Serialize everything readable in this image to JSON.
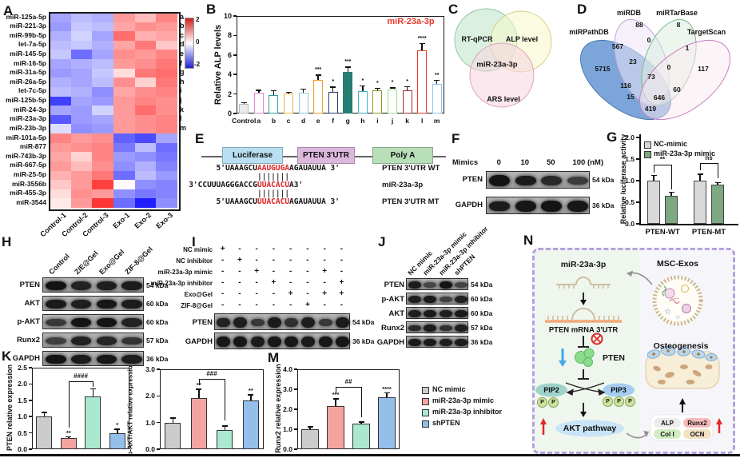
{
  "panels": {
    "A": "A",
    "B": "B",
    "C": "C",
    "D": "D",
    "E": "E",
    "F": "F",
    "G": "G",
    "H": "H",
    "I": "I",
    "J": "J",
    "K": "K",
    "L": "L",
    "M": "M",
    "N": "N"
  },
  "heatmap": {
    "rows": [
      "miR-125a-5p",
      "miR-221-3p",
      "miR-99b-5p",
      "let-7a-5p",
      "miR-145-5p",
      "miR-16-5p",
      "miR-31a-5p",
      "miR-26a-5p",
      "let-7c-5p",
      "miR-125b-5p",
      "miR-24-3p",
      "miR-23a-3p",
      "miR-23b-3p",
      "miR-101a-5p",
      "miR-877",
      "miR-743b-3p",
      "miR-667-5p",
      "miR-25-5p",
      "miR-3556b",
      "miR-455-3p",
      "miR-3544"
    ],
    "row_letters": [
      "a",
      "b",
      "c",
      "d",
      "e",
      "f",
      "g",
      "h",
      "i",
      "j",
      "k",
      "l",
      "m"
    ],
    "columns": [
      "Control-1",
      "Control-2",
      "Control-3",
      "Exo-1",
      "Exo-2",
      "Exo-3"
    ],
    "values": [
      [
        -0.8,
        -0.6,
        -0.7,
        0.9,
        0.6,
        1.1
      ],
      [
        -0.9,
        -0.5,
        -0.6,
        0.8,
        1.0,
        0.9
      ],
      [
        -0.7,
        -0.4,
        -0.8,
        1.3,
        0.7,
        0.8
      ],
      [
        -0.6,
        -0.5,
        -0.7,
        0.8,
        1.2,
        0.5
      ],
      [
        -0.5,
        -1.3,
        -0.8,
        1.0,
        0.9,
        1.1
      ],
      [
        -0.8,
        -0.7,
        -0.6,
        0.9,
        1.0,
        1.2
      ],
      [
        -0.9,
        -0.8,
        -0.5,
        0.3,
        1.2,
        1.3
      ],
      [
        -0.7,
        -0.8,
        -0.6,
        1.0,
        0.4,
        1.2
      ],
      [
        -0.6,
        -0.7,
        -1.0,
        0.8,
        1.0,
        1.1
      ],
      [
        -1.7,
        -0.8,
        -0.9,
        0.9,
        1.1,
        1.0
      ],
      [
        -0.8,
        -0.9,
        -0.4,
        0.9,
        1.3,
        1.0
      ],
      [
        -1.5,
        -0.9,
        -0.8,
        0.9,
        1.0,
        1.1
      ],
      [
        -0.3,
        -1.0,
        -0.9,
        0.9,
        1.0,
        1.1
      ],
      [
        1.1,
        0.9,
        1.0,
        -1.4,
        -1.6,
        -0.8
      ],
      [
        0.9,
        1.0,
        1.1,
        -1.2,
        -0.6,
        -1.3
      ],
      [
        0.8,
        0.4,
        1.1,
        -0.9,
        -1.0,
        -1.2
      ],
      [
        0.9,
        0.6,
        1.0,
        -1.0,
        -0.7,
        -1.1
      ],
      [
        0.7,
        0.9,
        1.2,
        -1.3,
        -0.6,
        -0.9
      ],
      [
        0.5,
        0.9,
        1.7,
        0.05,
        -1.0,
        -1.1
      ],
      [
        0.3,
        1.0,
        0.9,
        -1.0,
        -1.2,
        -1.1
      ],
      [
        0.2,
        0.9,
        1.8,
        -1.3,
        -2.0,
        -1.0
      ]
    ],
    "colorbar": {
      "max": "2",
      "mid": "0",
      "min": "-2"
    }
  },
  "chart_data": [
    {
      "id": "B",
      "type": "bar",
      "ylabel": "Relative ALP levels",
      "ylim": [
        0,
        10
      ],
      "yticks": [
        "0",
        "2",
        "4",
        "6",
        "8",
        "10"
      ],
      "categories": [
        "Control",
        "a",
        "b",
        "c",
        "d",
        "e",
        "f",
        "g",
        "h",
        "i",
        "j",
        "k",
        "l",
        "m"
      ],
      "values": [
        1.0,
        2.1,
        1.9,
        2.05,
        2.1,
        3.45,
        2.2,
        4.3,
        2.3,
        2.4,
        2.5,
        2.35,
        6.5,
        3.0
      ],
      "errors": [
        0.15,
        0.35,
        0.5,
        0.2,
        0.45,
        0.55,
        0.55,
        0.5,
        0.6,
        0.25,
        0.2,
        0.45,
        0.75,
        0.45
      ],
      "sig": [
        "",
        "",
        "",
        "",
        "",
        "***",
        "*",
        "***",
        "*",
        "*",
        "*",
        "*",
        "****",
        "**"
      ],
      "bar_colors": [
        "#b8b8b8",
        "#dd86dd",
        "#2d9d9d",
        "#f2b23c",
        "#8ec6e6",
        "#f59d2c",
        "#24406e",
        "#267d72",
        "#35b4bf",
        "#8f9623",
        "#9fdf8f",
        "#9e2b25",
        "#e8372b",
        "#97c2ef"
      ],
      "bar_fills": [
        "#ececec",
        "#ffffff",
        "#ffffff",
        "#ffffff",
        "#ffffff",
        "#ffffff",
        "#ffffff",
        "#267d72",
        "#ffffff",
        "#ffffff",
        "#ffffff",
        "#ffffff",
        "#ffffff",
        "#ffffff"
      ],
      "annotation": {
        "text": "miR-23a-3p",
        "color": "#e8372b"
      }
    },
    {
      "id": "G",
      "type": "grouped-bar",
      "ylabel": "Relative luciferase activity",
      "ylim": [
        0,
        2
      ],
      "yticks": [
        "0.0",
        "0.5",
        "1.0",
        "1.5",
        "2.0"
      ],
      "groups": [
        "PTEN-WT",
        "PTEN-MT"
      ],
      "series": [
        {
          "name": "NC-mimic",
          "color": "#d9d9d9",
          "values": [
            1.0,
            1.0
          ],
          "errors": [
            0.13,
            0.16
          ]
        },
        {
          "name": "miR-23a-3p mimic",
          "color": "#7ca882",
          "values": [
            0.65,
            0.9
          ],
          "errors": [
            0.1,
            0.07
          ]
        }
      ],
      "sig": [
        "**",
        "ns"
      ]
    },
    {
      "id": "K",
      "type": "bar",
      "ylabel": "PTEN relative expression",
      "ylim": [
        0,
        2.5
      ],
      "yticks": [
        "0.0",
        "0.5",
        "1.0",
        "1.5",
        "2.0",
        "2.5"
      ],
      "values": [
        1.0,
        0.35,
        1.62,
        0.5
      ],
      "errors": [
        0.15,
        0.05,
        0.25,
        0.13
      ],
      "sig": [
        "",
        "**",
        "",
        "*"
      ],
      "bracket": {
        "from": 1,
        "to": 2,
        "label": "####"
      }
    },
    {
      "id": "L",
      "type": "bar",
      "ylabel": "p-AKT/AKT relative expression",
      "ylim": [
        0,
        3
      ],
      "yticks": [
        "0.0",
        "1.0",
        "2.0",
        "3.0"
      ],
      "values": [
        1.0,
        1.93,
        0.72,
        1.82
      ],
      "errors": [
        0.2,
        0.35,
        0.18,
        0.25
      ],
      "sig": [
        "",
        "**",
        "",
        "**"
      ],
      "bracket": {
        "from": 1,
        "to": 2,
        "label": "###"
      }
    },
    {
      "id": "M",
      "type": "bar",
      "ylabel": "Runx2 relative expression",
      "ylim": [
        0,
        4
      ],
      "yticks": [
        "0.0",
        "1.0",
        "2.0",
        "3.0",
        "4.0"
      ],
      "values": [
        1.0,
        2.15,
        1.3,
        2.6
      ],
      "errors": [
        0.15,
        0.4,
        0.1,
        0.25
      ],
      "sig": [
        "",
        "***",
        "",
        "****"
      ],
      "bracket": {
        "from": 1,
        "to": 2,
        "label": "##"
      }
    }
  ],
  "klm_colors": [
    "#cccccc",
    "#f5a39f",
    "#aae8cf",
    "#93bfea"
  ],
  "klm_legend": [
    "NC mimic",
    "miR-23a-3p mimic",
    "miR-23a-3p inhibitor",
    "shPTEN"
  ],
  "venn3": {
    "sets": [
      "RT-qPCR",
      "ALP level",
      "ARS level"
    ],
    "center": "miR-23a-3p",
    "colors": [
      "#c2e8cf",
      "#f8f8d0",
      "#f8d8e0"
    ]
  },
  "venn4": {
    "sets": {
      "mirdb": "miRDB",
      "mirtarbase": "miRTarBase",
      "mirpathdb": "miRPathDB",
      "targetscan": "TargetScan"
    },
    "numbers": [
      "88",
      "8",
      "0",
      "567",
      "1",
      "23",
      "0",
      "5715",
      "73",
      "117",
      "116",
      "60",
      "15",
      "646",
      "419"
    ]
  },
  "luciferase": {
    "boxes": [
      "Luciferase",
      "PTEN 3'UTR",
      "Poly A"
    ],
    "box_colors": [
      "#b9e0f2",
      "#ddb8dd",
      "#b8dfb8"
    ],
    "seed_color": "#e02020",
    "rows": [
      {
        "prefix": "5'UAAAGCU",
        "seed": "AAUGUGA",
        "suffix": "AGAUAUUA 3'",
        "label": "PTEN 3'UTR WT"
      },
      {
        "prefix": "3'CCUUUAGGGACCG",
        "seed": "UUACACU",
        "suffix": "A3'",
        "label": "miR-23a-3p"
      },
      {
        "prefix": "5'UAAAGCU",
        "seed": "UUACACU",
        "suffix": "AGAUAUUA 3'",
        "label": "PTEN 3'UTR MT"
      }
    ],
    "pipes": "|||||||"
  },
  "blotF": {
    "header": "Mimics",
    "doses": [
      "0",
      "10",
      "50",
      "100 (nM)"
    ],
    "rows": [
      {
        "name": "PTEN",
        "kda": "54 kDa",
        "lanes": [
          1,
          0.9,
          0.7,
          0.45
        ]
      },
      {
        "name": "GAPDH",
        "kda": "36 kDa",
        "lanes": [
          0.9,
          0.95,
          1,
          0.95
        ]
      }
    ]
  },
  "blotH": {
    "columns": [
      "Control",
      "Z/E@Gel",
      "Exo@Gel",
      "ZIF-8@Gel"
    ],
    "rows": [
      {
        "name": "PTEN",
        "kda": "54 kDa",
        "lanes": [
          1,
          0.8,
          0.85,
          0.9
        ]
      },
      {
        "name": "AKT",
        "kda": "60 kDa",
        "lanes": [
          0.9,
          0.85,
          0.95,
          0.9
        ]
      },
      {
        "name": "p-AKT",
        "kda": "60 kDa",
        "lanes": [
          0.5,
          1,
          1,
          0.8
        ]
      },
      {
        "name": "Runx2",
        "kda": "57 kDa",
        "lanes": [
          0.4,
          0.8,
          0.75,
          0.55
        ]
      },
      {
        "name": "GAPDH",
        "kda": "36 kDa",
        "lanes": [
          1,
          0.9,
          0.95,
          0.85
        ]
      }
    ]
  },
  "blotI": {
    "treatments": [
      {
        "name": "NC mimic",
        "signs": [
          "+",
          "-",
          "-",
          "-",
          "-",
          "-",
          "-",
          "-"
        ]
      },
      {
        "name": "NC inhibitor",
        "signs": [
          "-",
          "+",
          "-",
          "-",
          "-",
          "-",
          "-",
          "-"
        ]
      },
      {
        "name": "miR-23a-3p mimic",
        "signs": [
          "-",
          "-",
          "+",
          "-",
          "-",
          "-",
          "+",
          "-"
        ]
      },
      {
        "name": "miR-23a-3p inhibitor",
        "signs": [
          "-",
          "-",
          "-",
          "+",
          "-",
          "-",
          "-",
          "+"
        ]
      },
      {
        "name": "Exo@Gel",
        "signs": [
          "-",
          "-",
          "-",
          "-",
          "+",
          "-",
          "+",
          "+"
        ]
      },
      {
        "name": "ZIF-8@Gel",
        "signs": [
          "-",
          "-",
          "-",
          "-",
          "-",
          "+",
          "-",
          "-"
        ]
      }
    ],
    "rows": [
      {
        "name": "PTEN",
        "kda": "54 kDa",
        "lanes": [
          0.8,
          0.85,
          0.5,
          0.9,
          0.6,
          0.85,
          0.5,
          0.9
        ]
      },
      {
        "name": "GAPDH",
        "kda": "36 kDa",
        "lanes": [
          0.95,
          0.95,
          0.9,
          0.95,
          0.95,
          0.9,
          0.95,
          0.95
        ]
      }
    ]
  },
  "blotJ": {
    "columns": [
      "NC mimic",
      "miR-23a-3p mimic",
      "miR-23a-3p inhibitor",
      "shPTEN"
    ],
    "rows": [
      {
        "name": "PTEN",
        "kda": "54 kDa",
        "lanes": [
          0.9,
          0.3,
          1,
          0.35
        ]
      },
      {
        "name": "p-AKT",
        "kda": "60 kDa",
        "lanes": [
          0.85,
          0.9,
          0.4,
          0.8
        ]
      },
      {
        "name": "AKT",
        "kda": "60 kDa",
        "lanes": [
          0.85,
          0.9,
          0.85,
          0.9
        ]
      },
      {
        "name": "Runx2",
        "kda": "57 kDa",
        "lanes": [
          0.7,
          0.9,
          0.6,
          0.85
        ]
      },
      {
        "name": "GAPDH",
        "kda": "36 kDa",
        "lanes": [
          0.9,
          0.9,
          0.85,
          0.9
        ]
      }
    ]
  },
  "mechanism": {
    "mirna": "miR-23a-3p",
    "exos": "MSC-Exos",
    "mrna": "PTEN mRNA 3'UTR",
    "pten": "PTEN",
    "pip2": "PIP2",
    "pip3": "PIP3",
    "p": "P",
    "akt": "AKT pathway",
    "osteo": "Osteogenesis",
    "markers": [
      "ALP",
      "Runx2",
      "Col I",
      "OCN"
    ],
    "marker_colors": [
      "#ececec",
      "#f6bcbc",
      "#d2ecc4",
      "#f2e2c2"
    ],
    "accent_red": "#e02828",
    "accent_blue": "#3fa9e8"
  }
}
